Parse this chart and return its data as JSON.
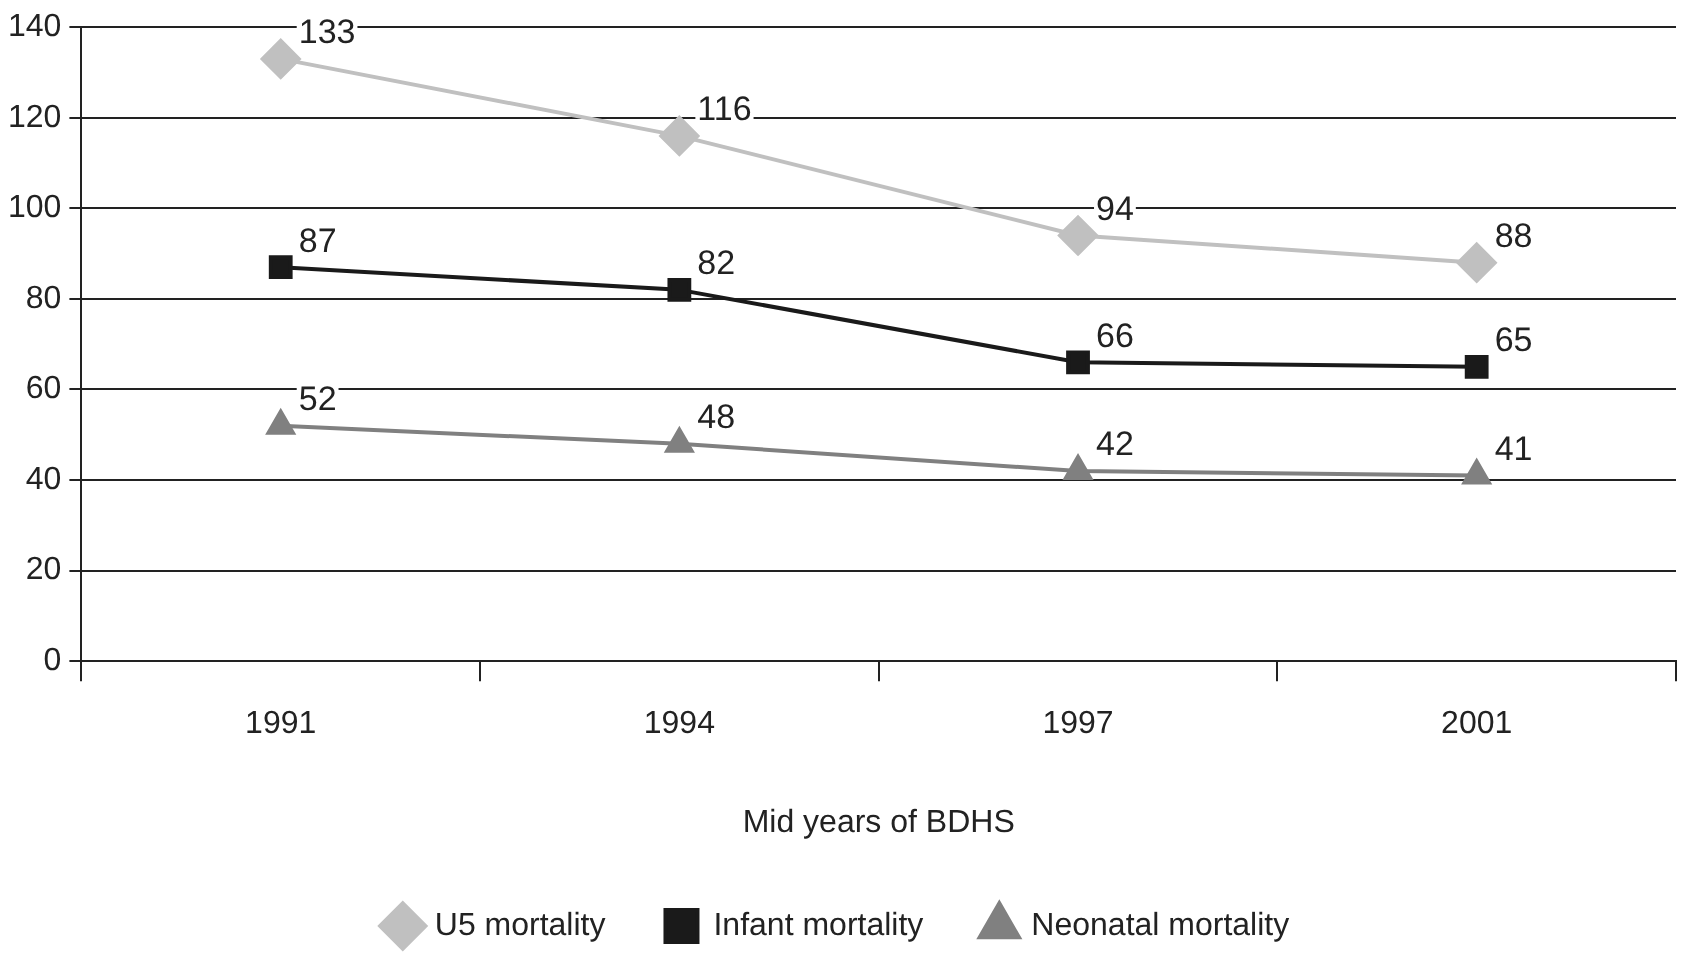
{
  "chart_data": {
    "type": "line",
    "xlabel": "Mid years of BDHS",
    "categories": [
      "1991",
      "1994",
      "1997",
      "2001"
    ],
    "series": [
      {
        "name": "U5 mortality",
        "color": "#c0c0c0",
        "marker": "diamond",
        "values": [
          133,
          116,
          94,
          88
        ]
      },
      {
        "name": "Infant mortality",
        "color": "#1a1a1a",
        "marker": "square",
        "values": [
          87,
          82,
          66,
          65
        ]
      },
      {
        "name": "Neonatal mortality",
        "color": "#808080",
        "marker": "triangle",
        "values": [
          52,
          48,
          42,
          41
        ]
      }
    ],
    "ylim": [
      0,
      140
    ],
    "yticks": [
      0,
      20,
      40,
      60,
      80,
      100,
      120,
      140
    ],
    "grid": "y",
    "legend": "bottom",
    "data_labels": true
  }
}
